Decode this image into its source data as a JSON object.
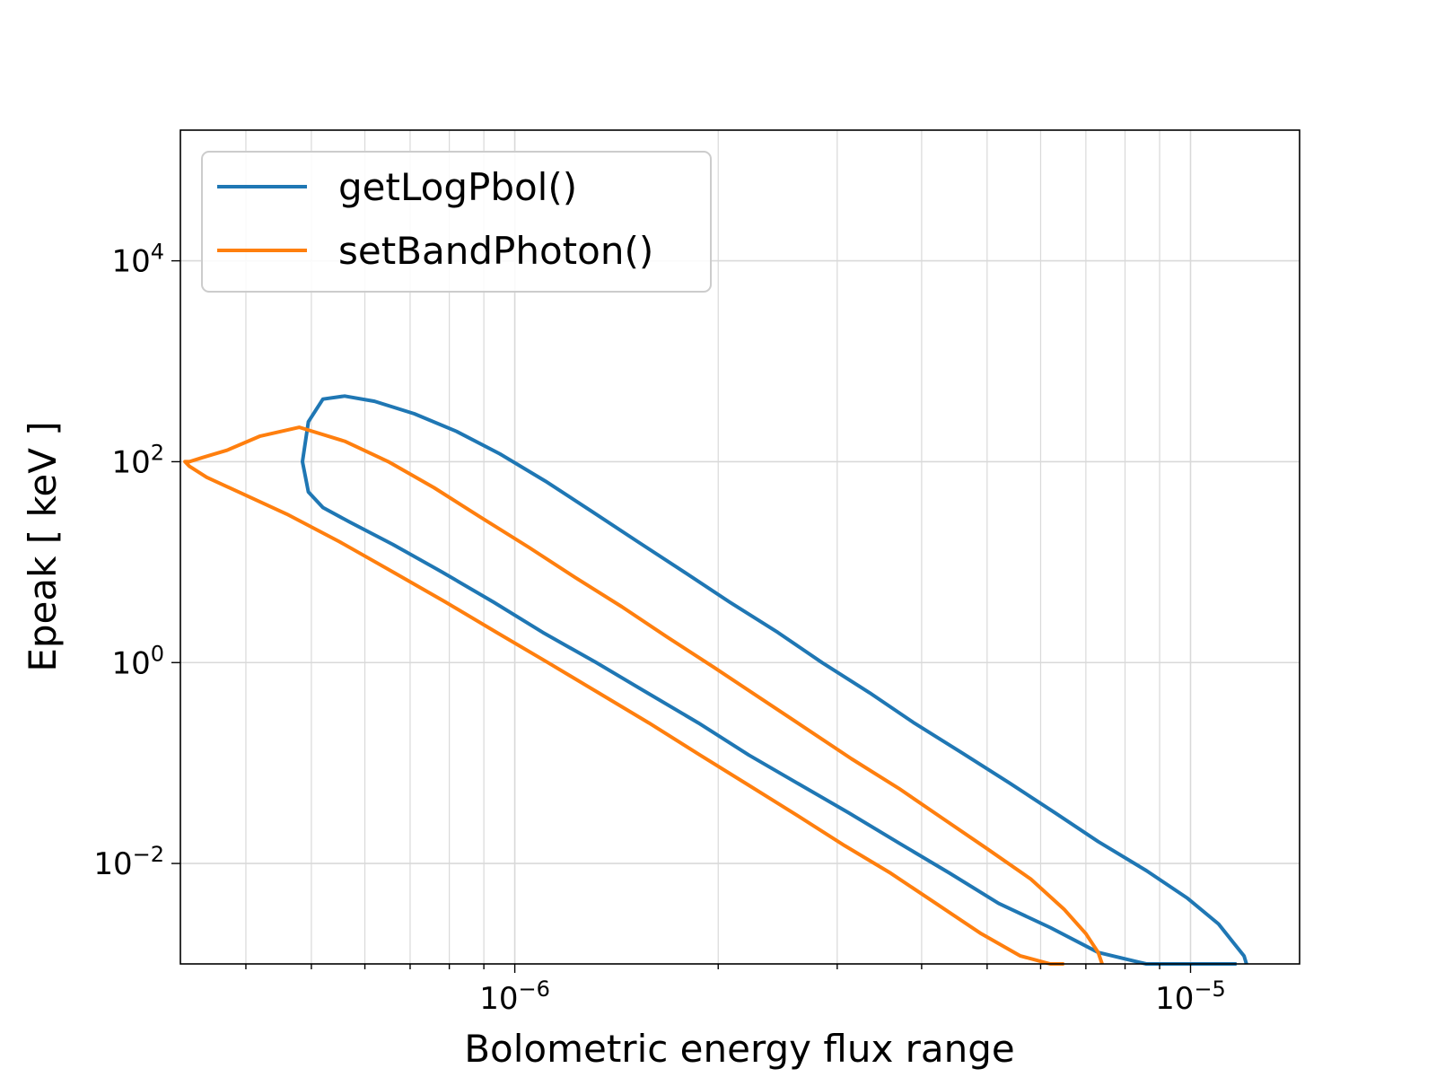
{
  "chart_data": {
    "type": "line",
    "title": "",
    "xlabel": "Bolometric energy flux range",
    "ylabel": "Epeak [ keV ]",
    "x_scale": "log",
    "y_scale": "log",
    "xlim": [
      3.2e-07,
      1.45e-05
    ],
    "ylim": [
      0.001,
      200000
    ],
    "x_ticks": [
      {
        "value": 1e-06,
        "base": "10",
        "exp": "−6"
      },
      {
        "value": 1e-05,
        "base": "10",
        "exp": "−5"
      }
    ],
    "y_ticks": [
      {
        "value": 0.01,
        "base": "10",
        "exp": "−2"
      },
      {
        "value": 1,
        "base": "10",
        "exp": "0"
      },
      {
        "value": 100,
        "base": "10",
        "exp": "2"
      },
      {
        "value": 10000,
        "base": "10",
        "exp": "4"
      }
    ],
    "grid": true,
    "legend_position": "top-left",
    "series": [
      {
        "name": "getLogPbol()",
        "color": "#1f77b4",
        "x": [
          1.21e-05,
          1.2e-05,
          1.16e-05,
          1.1e-05,
          9.9e-06,
          8.6e-06,
          7.3e-06,
          6.3e-06,
          5.4e-06,
          4.6e-06,
          3.9e-06,
          3.35e-06,
          2.85e-06,
          2.45e-06,
          2.08e-06,
          1.78e-06,
          1.52e-06,
          1.3e-06,
          1.11e-06,
          9.5e-07,
          8.2e-07,
          7.1e-07,
          6.2e-07,
          5.6e-07,
          5.2e-07,
          4.95e-07,
          4.85e-07,
          4.95e-07,
          5.2e-07,
          5.7e-07,
          6.6e-07,
          7.8e-07,
          9.3e-07,
          1.1e-06,
          1.32e-06,
          1.57e-06,
          1.87e-06,
          2.22e-06,
          2.63e-06,
          3.12e-06,
          3.7e-06,
          4.4e-06,
          5.2e-06,
          6.2e-06,
          7.3e-06,
          8.6e-06,
          1e-05,
          1.13e-05,
          1.17e-05
        ],
        "y": [
          0.001,
          0.0012,
          0.0016,
          0.0025,
          0.0045,
          0.0085,
          0.0165,
          0.032,
          0.063,
          0.125,
          0.25,
          0.5,
          1,
          2,
          4,
          8,
          16,
          32,
          64,
          120,
          200,
          300,
          400,
          450,
          420,
          250,
          100,
          50,
          35,
          25,
          15,
          8,
          4,
          2,
          1,
          0.5,
          0.25,
          0.12,
          0.062,
          0.032,
          0.016,
          0.008,
          0.004,
          0.0023,
          0.0013,
          0.0008,
          0.0005,
          0.0003,
          0.001
        ]
      },
      {
        "name": "setBandPhoton()",
        "color": "#ff7f0e",
        "x": [
          7.4e-06,
          7.3e-06,
          7e-06,
          6.5e-06,
          5.8e-06,
          5e-06,
          4.3e-06,
          3.7e-06,
          3.15e-06,
          2.7e-06,
          2.3e-06,
          1.97e-06,
          1.68e-06,
          1.44e-06,
          1.23e-06,
          1.05e-06,
          8.9e-07,
          7.6e-07,
          6.5e-07,
          5.6e-07,
          4.8e-07,
          4.2e-07,
          3.75e-07,
          3.45e-07,
          3.3e-07,
          3.25e-07,
          3.3e-07,
          3.5e-07,
          3.9e-07,
          4.6e-07,
          5.5e-07,
          6.6e-07,
          7.9e-07,
          9.4e-07,
          1.12e-06,
          1.33e-06,
          1.58e-06,
          1.88e-06,
          2.22e-06,
          2.62e-06,
          3.08e-06,
          3.6e-06,
          4.2e-06,
          4.9e-06,
          5.6e-06,
          6.2e-06,
          6.5e-06
        ],
        "y": [
          0.001,
          0.0013,
          0.002,
          0.0035,
          0.007,
          0.014,
          0.028,
          0.056,
          0.11,
          0.22,
          0.45,
          0.9,
          1.8,
          3.6,
          7,
          14,
          28,
          55,
          100,
          160,
          220,
          180,
          130,
          110,
          100,
          100,
          90,
          70,
          50,
          30,
          16,
          8,
          4,
          2,
          1,
          0.5,
          0.25,
          0.12,
          0.06,
          0.03,
          0.015,
          0.008,
          0.004,
          0.002,
          0.0012,
          0.001,
          0.001
        ]
      }
    ]
  }
}
